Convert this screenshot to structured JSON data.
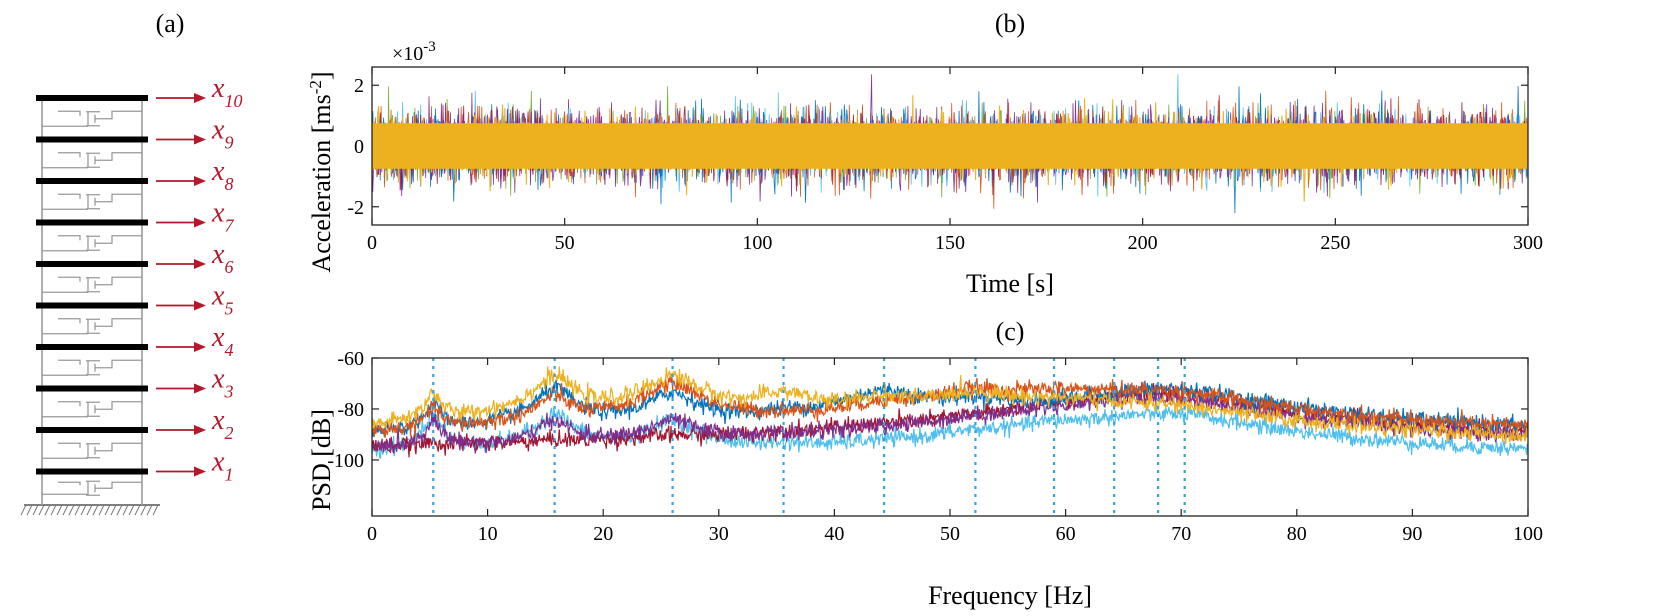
{
  "panels": {
    "a": {
      "label": "(a)"
    },
    "b": {
      "label": "(b)"
    },
    "c": {
      "label": "(c)"
    }
  },
  "structure": {
    "type": "shear-building",
    "storeys": 10,
    "dof_symbol": "x",
    "dof_subscripts": [
      "1",
      "2",
      "3",
      "4",
      "5",
      "6",
      "7",
      "8",
      "9",
      "10"
    ],
    "arrow_color": "#b3182b"
  },
  "chart_data": [
    {
      "type": "line",
      "panel": "b",
      "xlabel": "Time [s]",
      "ylabel": "Acceleration [ms",
      "ylabel_sup": "-2",
      "ylabel_tail": "]",
      "scale_prefix": "×10",
      "scale_exponent": "-3",
      "xlim": [
        0,
        300
      ],
      "ylim": [
        -2.6,
        2.6
      ],
      "xticks": [
        0,
        50,
        100,
        150,
        200,
        250,
        300
      ],
      "yticks": [
        -2,
        0,
        2
      ],
      "grid": false,
      "series_count": 10,
      "series_colors": [
        "#0072bd",
        "#d95319",
        "#7e2f8e",
        "#77ac30",
        "#4dbeee",
        "#a2142f",
        "#0072bd",
        "#d95319",
        "#7e2f8e",
        "#edb120"
      ],
      "signal": {
        "kind": "stationary random response",
        "core_rms": 0.55,
        "peak_amplitude": 2.5
      }
    },
    {
      "type": "line",
      "panel": "c",
      "xlabel": "Frequency [Hz]",
      "ylabel": "PSD [dB]",
      "xlim": [
        0,
        100
      ],
      "ylim": [
        -122,
        -60
      ],
      "xticks": [
        0,
        10,
        20,
        30,
        40,
        50,
        60,
        70,
        80,
        90,
        100
      ],
      "yticks": [
        -100,
        -80,
        -60
      ],
      "grid": false,
      "natural_frequencies": [
        5.3,
        15.8,
        26.0,
        35.6,
        44.3,
        52.2,
        59.0,
        64.2,
        68.0,
        70.3
      ],
      "mode_line_color": "#33a6e0",
      "series": [
        {
          "color": "#4dbeee",
          "peaks_db": [
            -82,
            -82,
            -85,
            -100,
            -100,
            -93,
            -88,
            -90,
            -85,
            -86
          ],
          "tail_db": -100
        },
        {
          "color": "#a2142f",
          "peaks_db": [
            -100,
            -100,
            -98,
            -100,
            -95,
            -92,
            -82,
            -80,
            -77,
            -78
          ],
          "tail_db": -98
        },
        {
          "color": "#7e2f8e",
          "peaks_db": [
            -85,
            -85,
            -85,
            -100,
            -97,
            -88,
            -84,
            -80,
            -79,
            -80
          ],
          "tail_db": -99
        },
        {
          "color": "#0072bd",
          "peaks_db": [
            -78,
            -72,
            -74,
            -85,
            -73,
            -77,
            -88,
            -80,
            -75,
            -76
          ],
          "tail_db": -96
        },
        {
          "color": "#d95319",
          "peaks_db": [
            -80,
            -75,
            -70,
            -90,
            -80,
            -73,
            -74,
            -77,
            -77,
            -78
          ],
          "tail_db": -97
        },
        {
          "color": "#edb120",
          "peaks_db": [
            -74,
            -67,
            -67,
            -74,
            -76,
            -74,
            -78,
            -82,
            -83,
            -85
          ],
          "tail_db": -104
        }
      ]
    }
  ]
}
